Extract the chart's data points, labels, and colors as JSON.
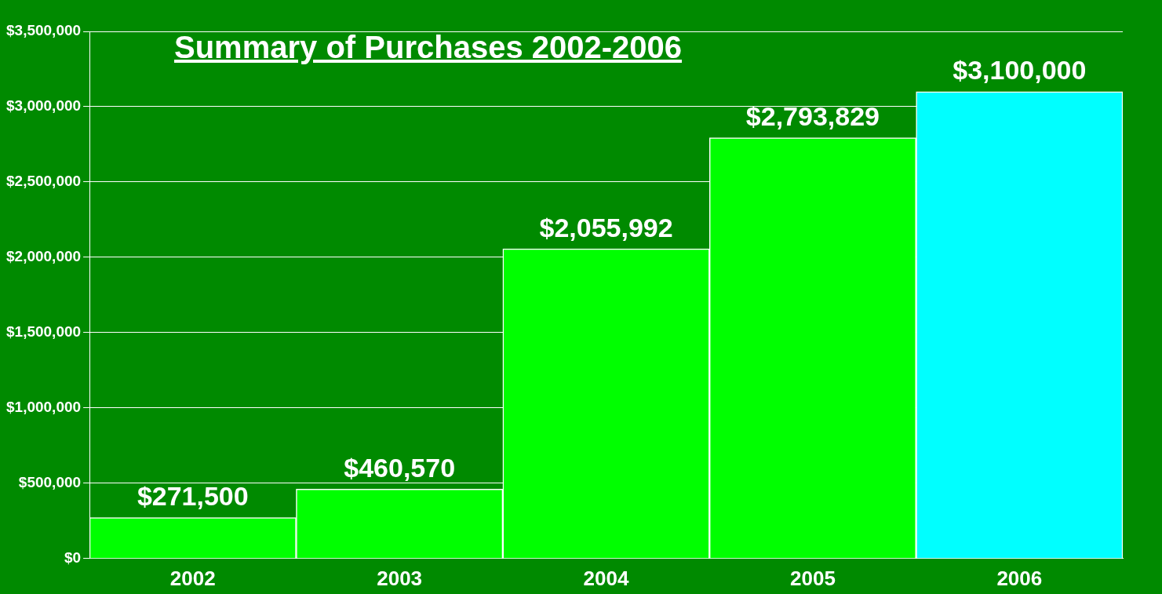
{
  "chart_data": {
    "type": "bar",
    "title": "Summary of Purchases 2002-2006",
    "categories": [
      "2002",
      "2003",
      "2004",
      "2005",
      "2006"
    ],
    "values": [
      271500,
      460570,
      2055992,
      2793829,
      3100000
    ],
    "colors": [
      "#00ff00",
      "#00ff00",
      "#00ff00",
      "#00ff00",
      "#00ffff"
    ],
    "value_labels": [
      "$271,500",
      "$460,570",
      "$2,055,992",
      "$2,793,829",
      "$3,100,000"
    ],
    "ylim": [
      0,
      3500000
    ],
    "yticks": [
      {
        "value": 0,
        "label": "$0"
      },
      {
        "value": 500000,
        "label": "$500,000"
      },
      {
        "value": 1000000,
        "label": "$1,000,000"
      },
      {
        "value": 1500000,
        "label": "$1,500,000"
      },
      {
        "value": 2000000,
        "label": "$2,000,000"
      },
      {
        "value": 2500000,
        "label": "$2,500,000"
      },
      {
        "value": 3000000,
        "label": "$3,000,000"
      },
      {
        "value": 3500000,
        "label": "$3,500,000"
      }
    ],
    "grid": "y",
    "legend": false
  }
}
